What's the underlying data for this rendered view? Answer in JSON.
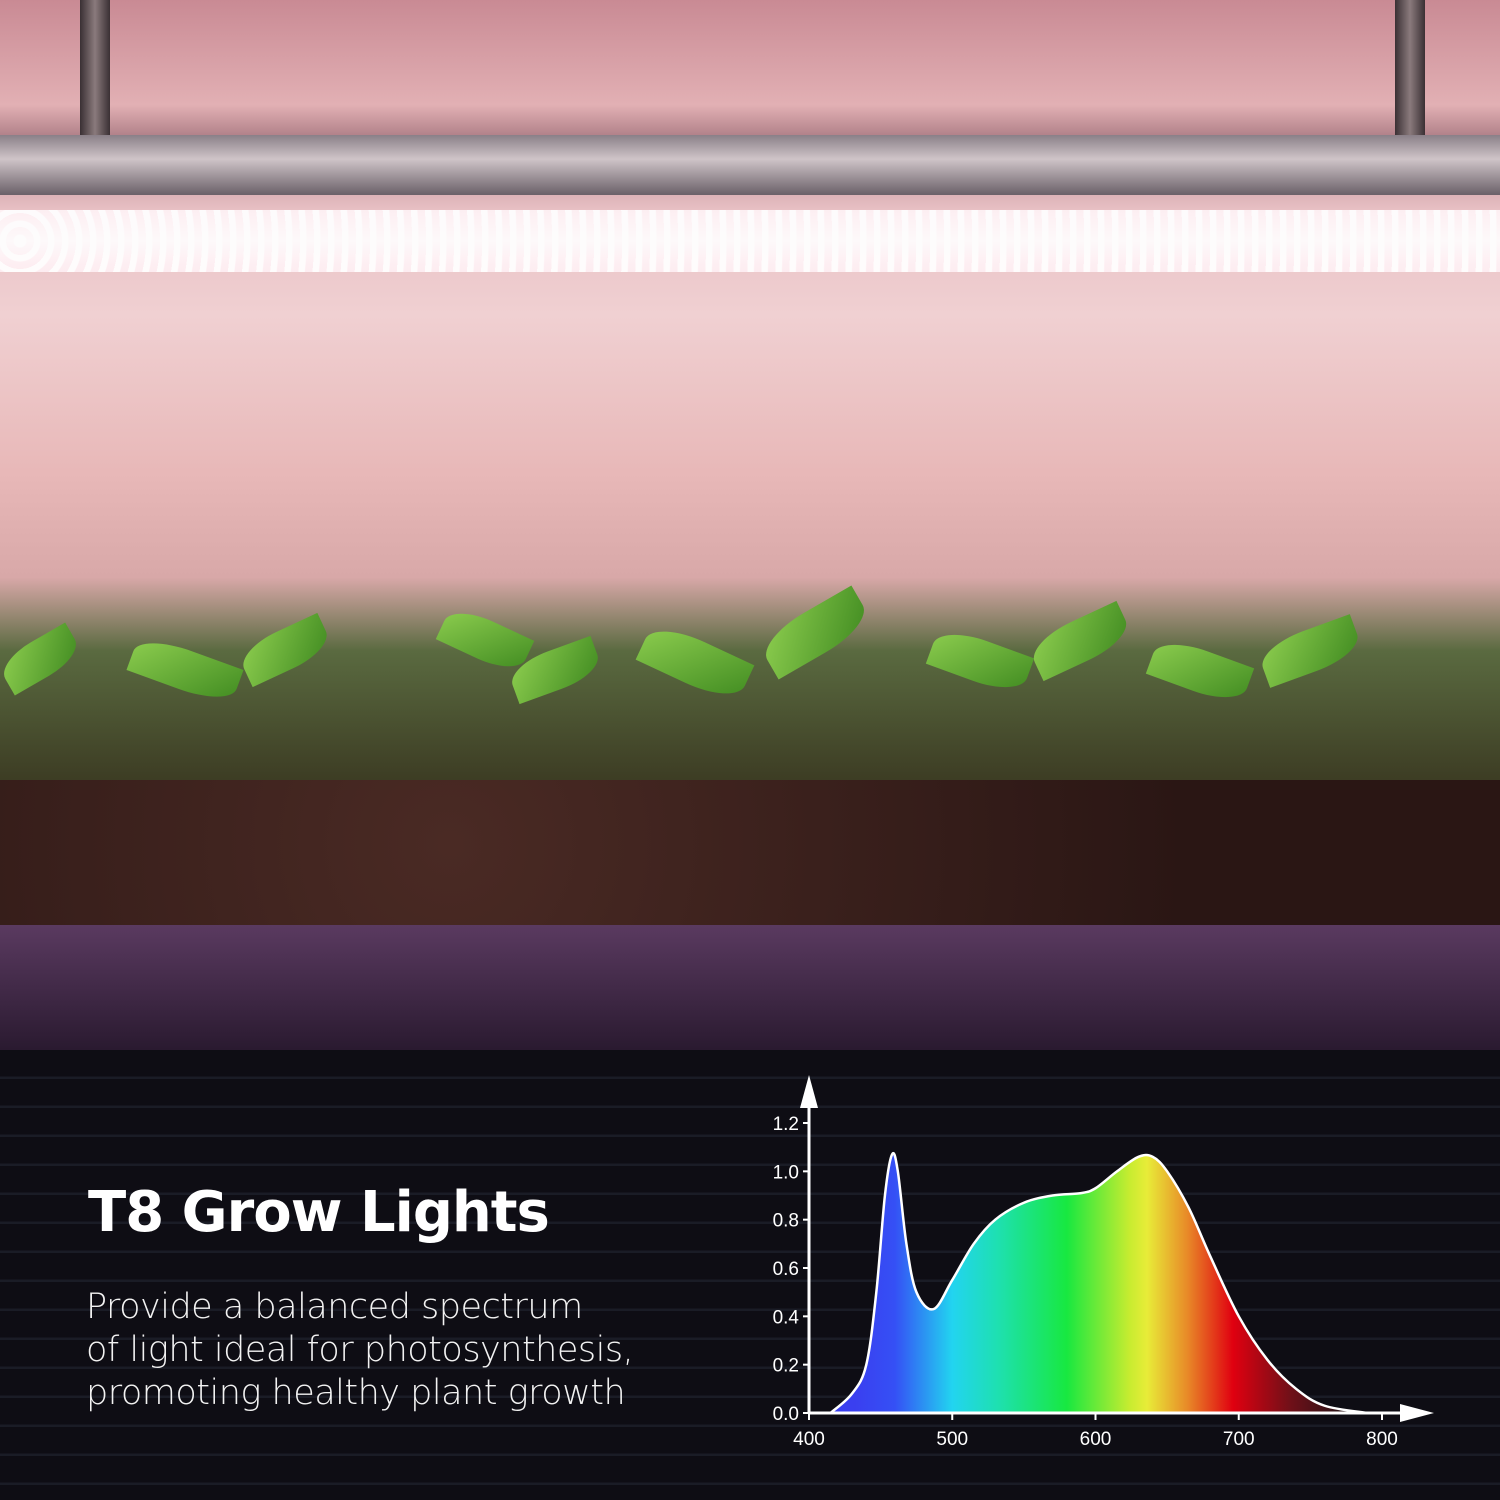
{
  "headline": "T8 Grow Lights",
  "description": [
    "Provide a balanced spectrum",
    "of light ideal for photosynthesis,",
    "promoting healthy plant growth"
  ],
  "colors": {
    "text": "#ffffff",
    "background": "#0e0d14",
    "grow_light": "#f0b8c4"
  },
  "chart_data": {
    "type": "area",
    "title": "",
    "xlabel": "",
    "ylabel": "",
    "xlim": [
      400,
      800
    ],
    "ylim": [
      0,
      1.2
    ],
    "x_ticks": [
      "400",
      "500",
      "600",
      "700",
      "800"
    ],
    "y_ticks": [
      "0.0",
      "0.2",
      "0.4",
      "0.6",
      "0.8",
      "1.0",
      "1.2"
    ],
    "grid": false,
    "fill": "visible-spectrum gradient",
    "x": [
      415,
      430,
      440,
      447,
      453,
      458,
      462,
      468,
      475,
      487,
      500,
      515,
      530,
      550,
      570,
      590,
      600,
      615,
      630,
      640,
      650,
      665,
      680,
      700,
      720,
      740,
      760,
      790
    ],
    "y": [
      0,
      0.08,
      0.2,
      0.5,
      0.9,
      1.07,
      1.0,
      0.7,
      0.5,
      0.43,
      0.55,
      0.7,
      0.8,
      0.87,
      0.9,
      0.91,
      0.93,
      1.0,
      1.06,
      1.06,
      1.0,
      0.85,
      0.65,
      0.4,
      0.22,
      0.1,
      0.03,
      0
    ]
  }
}
